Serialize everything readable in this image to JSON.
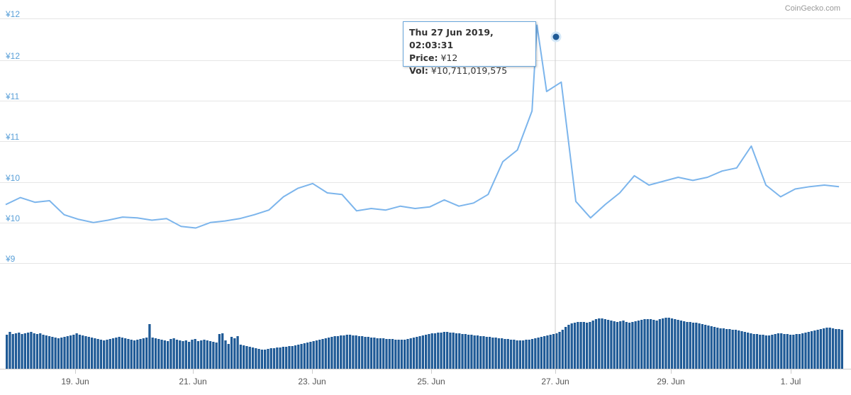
{
  "chart_data": {
    "type": "line",
    "credit": "CoinGecko.com",
    "y_tick_labels": [
      "¥12",
      "¥12",
      "¥11",
      "¥11",
      "¥10",
      "¥10",
      "¥9"
    ],
    "x_tick_labels": [
      "19. Jun",
      "21. Jun",
      "23. Jun",
      "25. Jun",
      "27. Jun",
      "29. Jun",
      "1. Jul"
    ],
    "x_range": [
      "2019-06-18T00:00",
      "2019-07-02T08:00"
    ],
    "y_range": [
      9.0,
      12.1
    ],
    "grid": true,
    "series": [
      {
        "type": "line",
        "color": "#7cb5ec",
        "x": [
          "2019-06-18T00:00",
          "2019-06-18T06:00",
          "2019-06-18T12:00",
          "2019-06-18T18:00",
          "2019-06-19T00:00",
          "2019-06-19T06:00",
          "2019-06-19T12:00",
          "2019-06-19T18:00",
          "2019-06-20T00:00",
          "2019-06-20T06:00",
          "2019-06-20T12:00",
          "2019-06-20T18:00",
          "2019-06-21T00:00",
          "2019-06-21T06:00",
          "2019-06-21T12:00",
          "2019-06-21T18:00",
          "2019-06-22T00:00",
          "2019-06-22T06:00",
          "2019-06-22T12:00",
          "2019-06-22T18:00",
          "2019-06-23T00:00",
          "2019-06-23T06:00",
          "2019-06-23T12:00",
          "2019-06-23T18:00",
          "2019-06-24T00:00",
          "2019-06-24T06:00",
          "2019-06-24T12:00",
          "2019-06-24T18:00",
          "2019-06-25T00:00",
          "2019-06-25T06:00",
          "2019-06-25T12:00",
          "2019-06-25T18:00",
          "2019-06-26T00:00",
          "2019-06-26T06:00",
          "2019-06-26T12:00",
          "2019-06-26T18:00",
          "2019-06-27T00:00",
          "2019-06-27T02:03",
          "2019-06-27T06:00",
          "2019-06-27T12:00",
          "2019-06-27T18:00",
          "2019-06-28T00:00",
          "2019-06-28T06:00",
          "2019-06-28T12:00",
          "2019-06-28T18:00",
          "2019-06-29T00:00",
          "2019-06-29T06:00",
          "2019-06-29T12:00",
          "2019-06-29T18:00",
          "2019-06-30T00:00",
          "2019-06-30T06:00",
          "2019-06-30T12:00",
          "2019-06-30T18:00",
          "2019-07-01T00:00",
          "2019-07-01T06:00",
          "2019-07-01T12:00",
          "2019-07-01T18:00",
          "2019-07-02T00:00",
          "2019-07-02T06:00"
        ],
        "values": [
          9.75,
          9.84,
          9.78,
          9.8,
          9.62,
          9.56,
          9.52,
          9.55,
          9.59,
          9.58,
          9.55,
          9.57,
          9.47,
          9.45,
          9.52,
          9.54,
          9.57,
          9.62,
          9.68,
          9.85,
          9.96,
          10.02,
          9.9,
          9.88,
          9.67,
          9.7,
          9.68,
          9.73,
          9.7,
          9.72,
          9.81,
          9.73,
          9.77,
          9.88,
          10.3,
          10.45,
          10.95,
          12.05,
          11.2,
          11.32,
          9.79,
          9.58,
          9.75,
          9.9,
          10.12,
          10.0,
          10.05,
          10.1,
          10.06,
          10.1,
          10.18,
          10.22,
          10.5,
          10.0,
          9.85,
          9.95,
          9.98,
          10.0,
          9.98
        ]
      }
    ],
    "volume": {
      "type": "bar",
      "color": "#1f5a96",
      "values": [
        4.8,
        5.2,
        4.9,
        5.0,
        5.1,
        4.9,
        5.0,
        5.1,
        5.2,
        5.0,
        4.9,
        5.0,
        4.8,
        4.7,
        4.6,
        4.5,
        4.4,
        4.3,
        4.4,
        4.5,
        4.6,
        4.7,
        4.8,
        5.0,
        4.8,
        4.7,
        4.6,
        4.5,
        4.4,
        4.3,
        4.2,
        4.1,
        4.0,
        4.1,
        4.2,
        4.3,
        4.4,
        4.5,
        4.4,
        4.3,
        4.2,
        4.1,
        4.0,
        4.1,
        4.2,
        4.3,
        4.4,
        6.3,
        4.4,
        4.3,
        4.2,
        4.1,
        4.0,
        3.9,
        4.2,
        4.3,
        4.1,
        4.0,
        3.9,
        4.0,
        3.8,
        4.1,
        4.2,
        3.9,
        4.0,
        4.1,
        4.0,
        3.9,
        3.8,
        3.7,
        4.9,
        5.0,
        4.0,
        3.5,
        4.5,
        4.3,
        4.6,
        3.4,
        3.3,
        3.2,
        3.1,
        3.0,
        2.9,
        2.8,
        2.7,
        2.7,
        2.8,
        2.9,
        2.9,
        3.0,
        3.0,
        3.1,
        3.1,
        3.2,
        3.2,
        3.3,
        3.4,
        3.5,
        3.6,
        3.7,
        3.8,
        3.9,
        4.0,
        4.1,
        4.2,
        4.3,
        4.4,
        4.5,
        4.6,
        4.6,
        4.7,
        4.7,
        4.8,
        4.8,
        4.7,
        4.7,
        4.6,
        4.6,
        4.5,
        4.5,
        4.4,
        4.4,
        4.3,
        4.3,
        4.3,
        4.2,
        4.2,
        4.2,
        4.1,
        4.1,
        4.1,
        4.1,
        4.2,
        4.3,
        4.4,
        4.5,
        4.6,
        4.7,
        4.8,
        4.9,
        5.0,
        5.0,
        5.1,
        5.1,
        5.2,
        5.2,
        5.1,
        5.1,
        5.0,
        5.0,
        4.9,
        4.9,
        4.8,
        4.8,
        4.7,
        4.7,
        4.6,
        4.6,
        4.5,
        4.5,
        4.4,
        4.4,
        4.3,
        4.3,
        4.2,
        4.2,
        4.1,
        4.1,
        4.0,
        4.0,
        4.0,
        4.1,
        4.1,
        4.2,
        4.3,
        4.4,
        4.5,
        4.6,
        4.7,
        4.8,
        4.9,
        5.0,
        5.2,
        5.5,
        5.9,
        6.2,
        6.4,
        6.5,
        6.6,
        6.6,
        6.6,
        6.5,
        6.6,
        6.8,
        7.0,
        7.1,
        7.1,
        7.0,
        6.9,
        6.8,
        6.7,
        6.6,
        6.7,
        6.8,
        6.6,
        6.5,
        6.6,
        6.7,
        6.8,
        6.9,
        7.0,
        7.0,
        7.0,
        6.9,
        6.8,
        7.0,
        7.1,
        7.2,
        7.2,
        7.1,
        7.0,
        6.9,
        6.8,
        6.7,
        6.6,
        6.6,
        6.5,
        6.5,
        6.4,
        6.3,
        6.2,
        6.1,
        6.0,
        5.9,
        5.8,
        5.7,
        5.7,
        5.6,
        5.6,
        5.5,
        5.5,
        5.4,
        5.3,
        5.2,
        5.1,
        5.0,
        4.9,
        4.9,
        4.8,
        4.8,
        4.7,
        4.7,
        4.8,
        4.9,
        5.0,
        5.0,
        4.9,
        4.9,
        4.8,
        4.8,
        4.9,
        4.9,
        5.0,
        5.1,
        5.2,
        5.3,
        5.4,
        5.5,
        5.6,
        5.7,
        5.8,
        5.8,
        5.7,
        5.6,
        5.6,
        5.5
      ]
    }
  },
  "tooltip": {
    "date": "Thu 27 Jun 2019, 02:03:31",
    "price_label": "Price:",
    "price_value": "¥12",
    "vol_label": "Vol:",
    "vol_value": "¥10,711,019,575"
  }
}
